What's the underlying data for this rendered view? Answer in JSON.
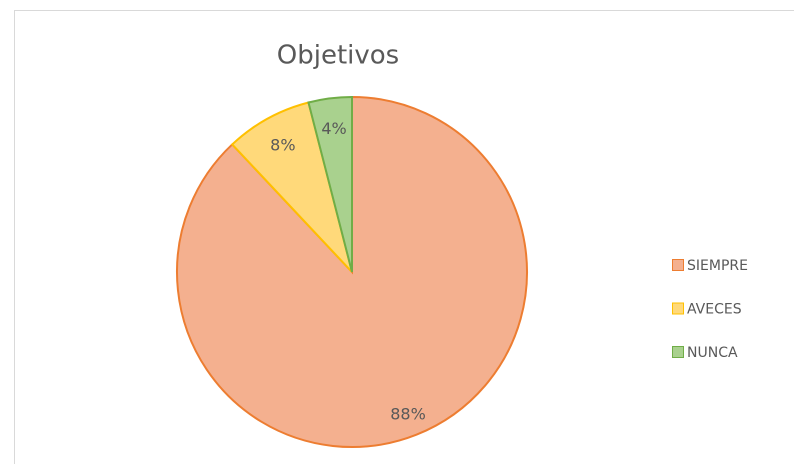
{
  "chart_data": {
    "type": "pie",
    "title": "Objetivos",
    "categories": [
      "SIEMPRE",
      "AVECES",
      "NUNCA"
    ],
    "values": [
      88,
      8,
      4
    ],
    "value_labels": [
      "88%",
      "8%",
      "4%"
    ],
    "colors": [
      "#f4b08f",
      "#ffd97a",
      "#a9d18e"
    ],
    "edge_colors": [
      "#ed7d31",
      "#ffc000",
      "#70ad47"
    ],
    "legend": "right"
  }
}
